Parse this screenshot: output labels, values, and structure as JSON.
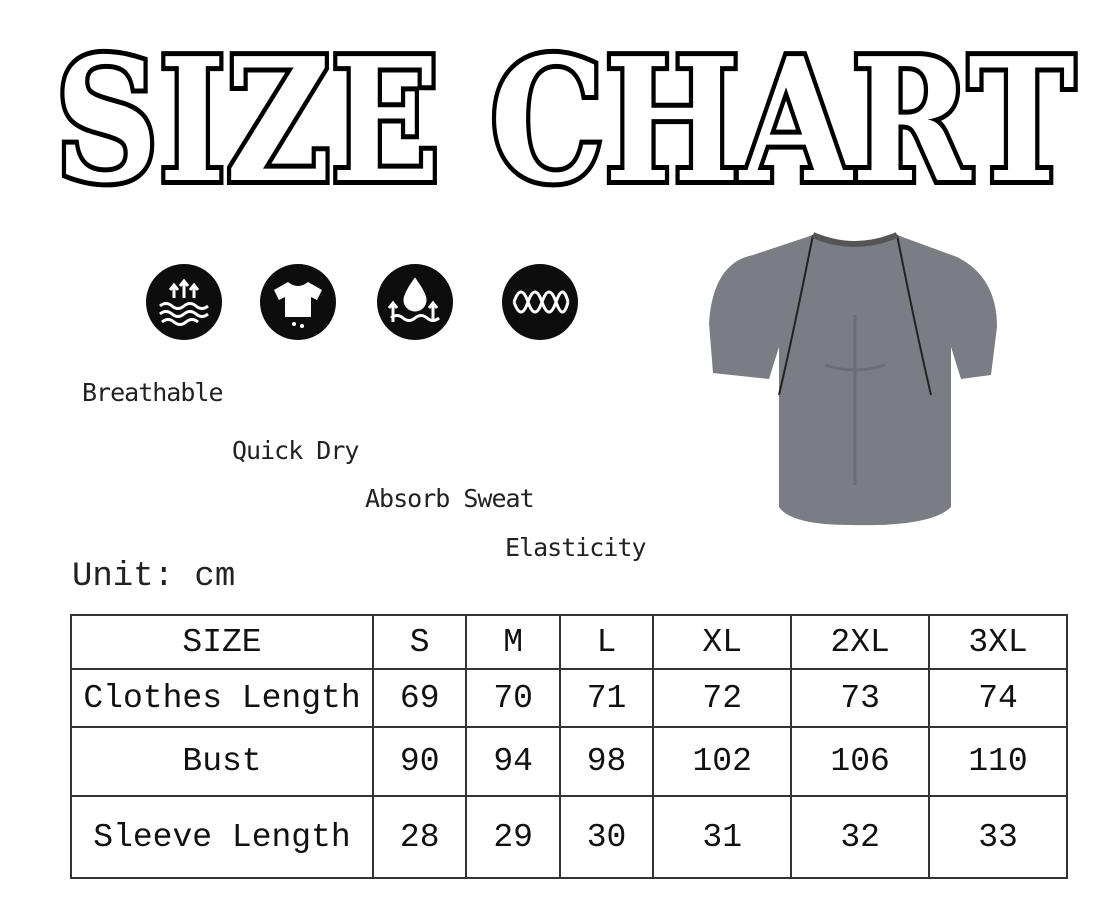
{
  "title": "SIZE CHART",
  "features": [
    {
      "label": "Breathable",
      "icon": "breathable-waves-icon"
    },
    {
      "label": "Quick Dry",
      "icon": "shirt-drip-icon"
    },
    {
      "label": "Absorb Sweat",
      "icon": "water-drop-icon"
    },
    {
      "label": "Elasticity",
      "icon": "elastic-wave-icon"
    }
  ],
  "unit": "Unit: cm",
  "table": {
    "header": [
      "SIZE",
      "S",
      "M",
      "L",
      "XL",
      "2XL",
      "3XL"
    ],
    "rows": [
      {
        "label": "Clothes Length",
        "values": [
          "69",
          "70",
          "71",
          "72",
          "73",
          "74"
        ]
      },
      {
        "label": "Bust",
        "values": [
          "90",
          "94",
          "98",
          "102",
          "106",
          "110"
        ]
      },
      {
        "label": "Sleeve Length",
        "values": [
          "28",
          "29",
          "30",
          "31",
          "32",
          "33"
        ]
      }
    ]
  },
  "colors": {
    "shirt": "#7a7d84",
    "icon_bg": "#0d0d0d"
  }
}
